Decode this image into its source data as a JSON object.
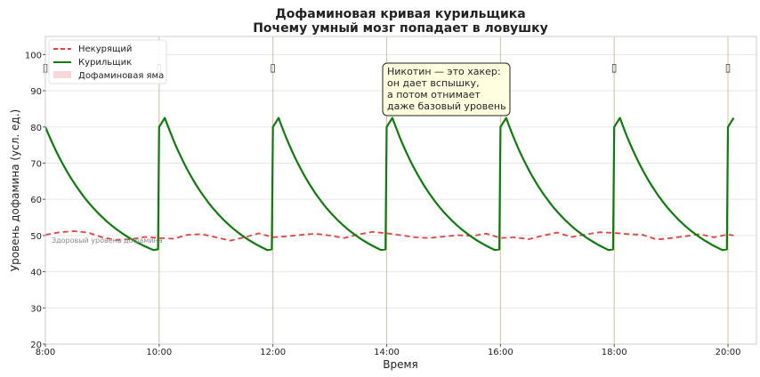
{
  "chart_data": {
    "type": "line",
    "title": "Дофаминовая кривая курильщика",
    "subtitle": "Почему умный мозг попадает в ловушку",
    "xlabel": "Время",
    "ylabel": "Уровень дофамина (усл. ед.)",
    "xlim": [
      8.0,
      20.5
    ],
    "ylim": [
      20,
      105
    ],
    "x_ticks": [
      8,
      10,
      12,
      14,
      16,
      18,
      20
    ],
    "x_tick_labels": [
      "8:00",
      "10:00",
      "12:00",
      "14:00",
      "16:00",
      "18:00",
      "20:00"
    ],
    "y_ticks": [
      20,
      30,
      40,
      50,
      60,
      70,
      80,
      90,
      100
    ],
    "y_tick_labels": [
      "20",
      "30",
      "40",
      "50",
      "60",
      "70",
      "80",
      "90",
      "100"
    ],
    "grid": true,
    "legend_position": "top-left",
    "cigarette_times": [
      8.0,
      10.0,
      12.0,
      14.0,
      16.0,
      18.0,
      20.0
    ],
    "cigarette_marker": "▯",
    "series": [
      {
        "name": "Некурящий",
        "color": "#e8403f",
        "style": "dashed",
        "points": [
          [
            8.0,
            50.2
          ],
          [
            8.25,
            50.9
          ],
          [
            8.5,
            51.2
          ],
          [
            8.75,
            50.8
          ],
          [
            9.0,
            49.5
          ],
          [
            9.25,
            48.8
          ],
          [
            9.5,
            49.0
          ],
          [
            9.75,
            49.6
          ],
          [
            10.0,
            49.3
          ],
          [
            10.25,
            49.1
          ],
          [
            10.5,
            50.2
          ],
          [
            10.75,
            50.4
          ],
          [
            11.0,
            49.5
          ],
          [
            11.25,
            48.6
          ],
          [
            11.5,
            49.5
          ],
          [
            11.75,
            50.6
          ],
          [
            12.0,
            49.5
          ],
          [
            12.25,
            49.8
          ],
          [
            12.5,
            50.2
          ],
          [
            12.75,
            50.5
          ],
          [
            13.0,
            50.0
          ],
          [
            13.25,
            49.3
          ],
          [
            13.5,
            50.3
          ],
          [
            13.75,
            51.0
          ],
          [
            14.0,
            50.6
          ],
          [
            14.25,
            50.1
          ],
          [
            14.5,
            49.5
          ],
          [
            14.75,
            49.3
          ],
          [
            15.0,
            49.7
          ],
          [
            15.25,
            50.1
          ],
          [
            15.5,
            49.9
          ],
          [
            15.75,
            50.5
          ],
          [
            16.0,
            49.3
          ],
          [
            16.25,
            49.5
          ],
          [
            16.5,
            49.0
          ],
          [
            16.75,
            50.0
          ],
          [
            17.0,
            50.8
          ],
          [
            17.25,
            49.6
          ],
          [
            17.5,
            50.3
          ],
          [
            17.75,
            50.9
          ],
          [
            18.0,
            50.7
          ],
          [
            18.25,
            50.4
          ],
          [
            18.5,
            50.2
          ],
          [
            18.75,
            48.9
          ],
          [
            19.0,
            49.3
          ],
          [
            19.25,
            49.8
          ],
          [
            19.5,
            50.4
          ],
          [
            19.75,
            49.5
          ],
          [
            20.0,
            50.3
          ],
          [
            20.1,
            50.0
          ]
        ]
      },
      {
        "name": "Курильщик",
        "color": "#0a7d0a",
        "style": "solid",
        "cycle": {
          "start_level": 80,
          "peak": 82.5,
          "peak_offset_h": 0.1,
          "trough": 46,
          "trough_offset_h": 1.9,
          "rise_duration_h": 0.1
        },
        "cycle_starts": [
          8.0,
          10.0,
          12.0,
          14.0,
          16.0,
          18.0,
          20.0
        ],
        "x_end": 20.1
      }
    ],
    "legend": [
      {
        "label": "Некурящий",
        "kind": "dashed-line",
        "color": "#e8403f"
      },
      {
        "label": "Курильщик",
        "kind": "line",
        "color": "#0a7d0a"
      },
      {
        "label": "Дофаминовая яма",
        "kind": "patch",
        "color": "#f8d7da"
      }
    ],
    "annotations": {
      "baseline_label": "Здоровый уровень дофамина",
      "callout_lines": [
        "Никотин — это хакер:",
        "он дает вспышку,",
        "а потом отнимает",
        "даже базовый уровень"
      ]
    }
  }
}
